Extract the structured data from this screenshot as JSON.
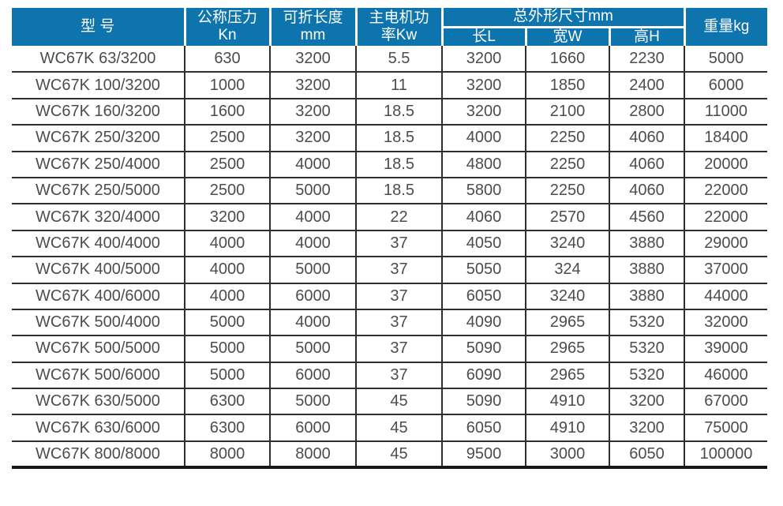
{
  "colors": {
    "header_bg": "#0e74ad",
    "header_text": "#ffffff",
    "body_text": "#4c4c4c",
    "grid_line": "#2e2e2e"
  },
  "table": {
    "headers": {
      "model": "型 号",
      "pressure": "公称压力\nKn",
      "length": "可折长度\nmm",
      "power": "主电机功\n率Kw",
      "dims_group": "总外形尺寸mm",
      "dim_l": "长L",
      "dim_w": "宽W",
      "dim_h": "高H",
      "weight": "重量kg"
    },
    "rows": [
      [
        "WC67K 63/3200",
        "630",
        "3200",
        "5.5",
        "3200",
        "1660",
        "2230",
        "5000"
      ],
      [
        "WC67K 100/3200",
        "1000",
        "3200",
        "11",
        "3200",
        "1850",
        "2400",
        "6000"
      ],
      [
        "WC67K 160/3200",
        "1600",
        "3200",
        "18.5",
        "3200",
        "2100",
        "2800",
        "11000"
      ],
      [
        "WC67K 250/3200",
        "2500",
        "3200",
        "18.5",
        "4000",
        "2250",
        "4060",
        "18400"
      ],
      [
        "WC67K 250/4000",
        "2500",
        "4000",
        "18.5",
        "4800",
        "2250",
        "4060",
        "20000"
      ],
      [
        "WC67K 250/5000",
        "2500",
        "5000",
        "18.5",
        "5800",
        "2250",
        "4060",
        "22000"
      ],
      [
        "WC67K 320/4000",
        "3200",
        "4000",
        "22",
        "4060",
        "2570",
        "4560",
        "22000"
      ],
      [
        "WC67K 400/4000",
        "4000",
        "4000",
        "37",
        "4050",
        "3240",
        "3880",
        "29000"
      ],
      [
        "WC67K 400/5000",
        "4000",
        "5000",
        "37",
        "5050",
        "324",
        "3880",
        "37000"
      ],
      [
        "WC67K 400/6000",
        "4000",
        "6000",
        "37",
        "6050",
        "3240",
        "3880",
        "44000"
      ],
      [
        "WC67K 500/4000",
        "5000",
        "4000",
        "37",
        "4090",
        "2965",
        "5320",
        "32000"
      ],
      [
        "WC67K 500/5000",
        "5000",
        "5000",
        "37",
        "5090",
        "2965",
        "5320",
        "39000"
      ],
      [
        "WC67K 500/6000",
        "5000",
        "6000",
        "37",
        "6090",
        "2965",
        "5320",
        "46000"
      ],
      [
        "WC67K 630/5000",
        "6300",
        "5000",
        "45",
        "5090",
        "4910",
        "3200",
        "67000"
      ],
      [
        "WC67K 630/6000",
        "6300",
        "6000",
        "45",
        "6050",
        "4910",
        "3200",
        "75000"
      ],
      [
        "WC67K 800/8000",
        "8000",
        "8000",
        "45",
        "9500",
        "3000",
        "6050",
        "100000"
      ]
    ]
  }
}
